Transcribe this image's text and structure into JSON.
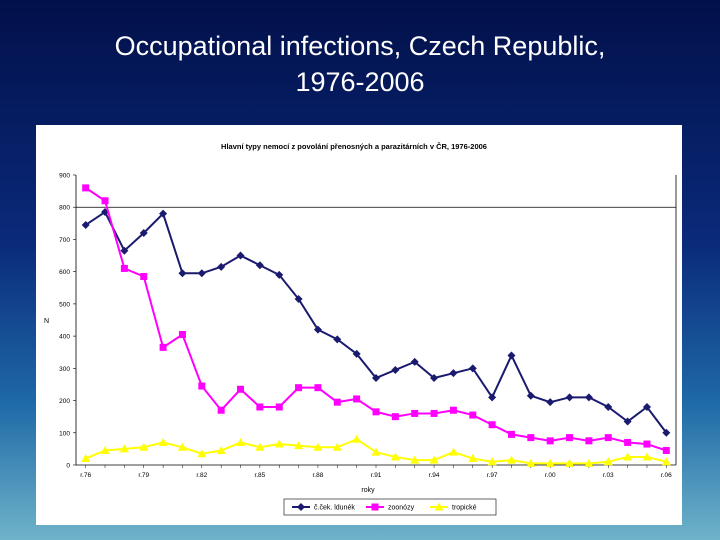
{
  "slide": {
    "title_line1": "Occupational infections, Czech Republic,",
    "title_line2": "1976-2006"
  },
  "chart_data": {
    "type": "line",
    "title": "Hlavní typy nemocí z povolání přenosných a parazitárních v ČR, 1976-2006",
    "xlabel": "roky",
    "ylabel": "N",
    "ylim": [
      0,
      900
    ],
    "yticks": [
      0,
      100,
      200,
      300,
      400,
      500,
      600,
      700,
      800,
      900
    ],
    "grid": false,
    "reference_line": 800,
    "legend_position": "bottom",
    "x": [
      1976,
      1977,
      1978,
      1979,
      1980,
      1981,
      1982,
      1983,
      1984,
      1985,
      1986,
      1987,
      1988,
      1989,
      1990,
      1991,
      1992,
      1993,
      1994,
      1995,
      1996,
      1997,
      1998,
      1999,
      2000,
      2001,
      2002,
      2003,
      2004,
      2005,
      2006
    ],
    "xtick_labels": [
      "r.76",
      "r.79",
      "r.82",
      "r.85",
      "r.88",
      "r.91",
      "r.94",
      "r.97",
      "r.00",
      "r.03",
      "r.06"
    ],
    "xtick_years": [
      1976,
      1979,
      1982,
      1985,
      1988,
      1991,
      1994,
      1997,
      2000,
      2003,
      2006
    ],
    "series": [
      {
        "name": "č.ček. ldunék",
        "color": "#1a1a6e",
        "marker": "diamond",
        "values": [
          745,
          785,
          665,
          720,
          780,
          595,
          595,
          615,
          650,
          620,
          590,
          515,
          420,
          390,
          345,
          270,
          295,
          320,
          270,
          285,
          300,
          210,
          340,
          215,
          195,
          210,
          210,
          180,
          135,
          180,
          100
        ]
      },
      {
        "name": "zoonózy",
        "color": "#ff00ff",
        "marker": "square",
        "values": [
          860,
          820,
          610,
          585,
          365,
          405,
          245,
          170,
          235,
          180,
          180,
          240,
          240,
          195,
          205,
          165,
          150,
          160,
          160,
          170,
          155,
          125,
          95,
          85,
          75,
          85,
          75,
          85,
          70,
          65,
          45
        ]
      },
      {
        "name": "tropické",
        "color": "#ffff00",
        "marker": "triangle",
        "values": [
          20,
          45,
          50,
          55,
          70,
          55,
          35,
          45,
          70,
          55,
          65,
          60,
          55,
          55,
          80,
          40,
          25,
          15,
          15,
          40,
          20,
          10,
          15,
          5,
          5,
          5,
          5,
          10,
          25,
          25,
          10
        ]
      }
    ]
  }
}
